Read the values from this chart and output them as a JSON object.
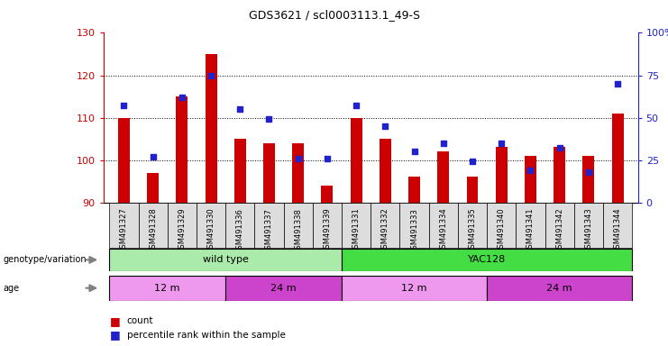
{
  "title": "GDS3621 / scl0003113.1_49-S",
  "samples": [
    "GSM491327",
    "GSM491328",
    "GSM491329",
    "GSM491330",
    "GSM491336",
    "GSM491337",
    "GSM491338",
    "GSM491339",
    "GSM491331",
    "GSM491332",
    "GSM491333",
    "GSM491334",
    "GSM491335",
    "GSM491340",
    "GSM491341",
    "GSM491342",
    "GSM491343",
    "GSM491344"
  ],
  "count_values": [
    110,
    97,
    115,
    125,
    105,
    104,
    104,
    94,
    110,
    105,
    96,
    102,
    96,
    103,
    101,
    103,
    101,
    111
  ],
  "percentile_values": [
    57,
    27,
    62,
    75,
    55,
    49,
    26,
    26,
    57,
    45,
    30,
    35,
    24,
    35,
    19,
    32,
    18,
    70
  ],
  "ylim_left": [
    90,
    130
  ],
  "ylim_right": [
    0,
    100
  ],
  "yticks_left": [
    90,
    100,
    110,
    120,
    130
  ],
  "yticks_right": [
    0,
    25,
    50,
    75,
    100
  ],
  "bar_color": "#cc0000",
  "dot_color": "#2222cc",
  "bar_bottom": 90,
  "genotype_labels": [
    {
      "label": "wild type",
      "start": 0,
      "end": 8,
      "color": "#aaeaaa"
    },
    {
      "label": "YAC128",
      "start": 8,
      "end": 18,
      "color": "#44dd44"
    }
  ],
  "age_labels": [
    {
      "label": "12 m",
      "start": 0,
      "end": 4,
      "color": "#ee99ee"
    },
    {
      "label": "24 m",
      "start": 4,
      "end": 8,
      "color": "#cc44cc"
    },
    {
      "label": "12 m",
      "start": 8,
      "end": 13,
      "color": "#ee99ee"
    },
    {
      "label": "24 m",
      "start": 13,
      "end": 18,
      "color": "#cc44cc"
    }
  ],
  "legend_count_label": "count",
  "legend_pct_label": "percentile rank within the sample",
  "background_color": "#ffffff",
  "grid_lines": [
    100,
    110,
    120
  ],
  "xtick_bg": "#dddddd"
}
